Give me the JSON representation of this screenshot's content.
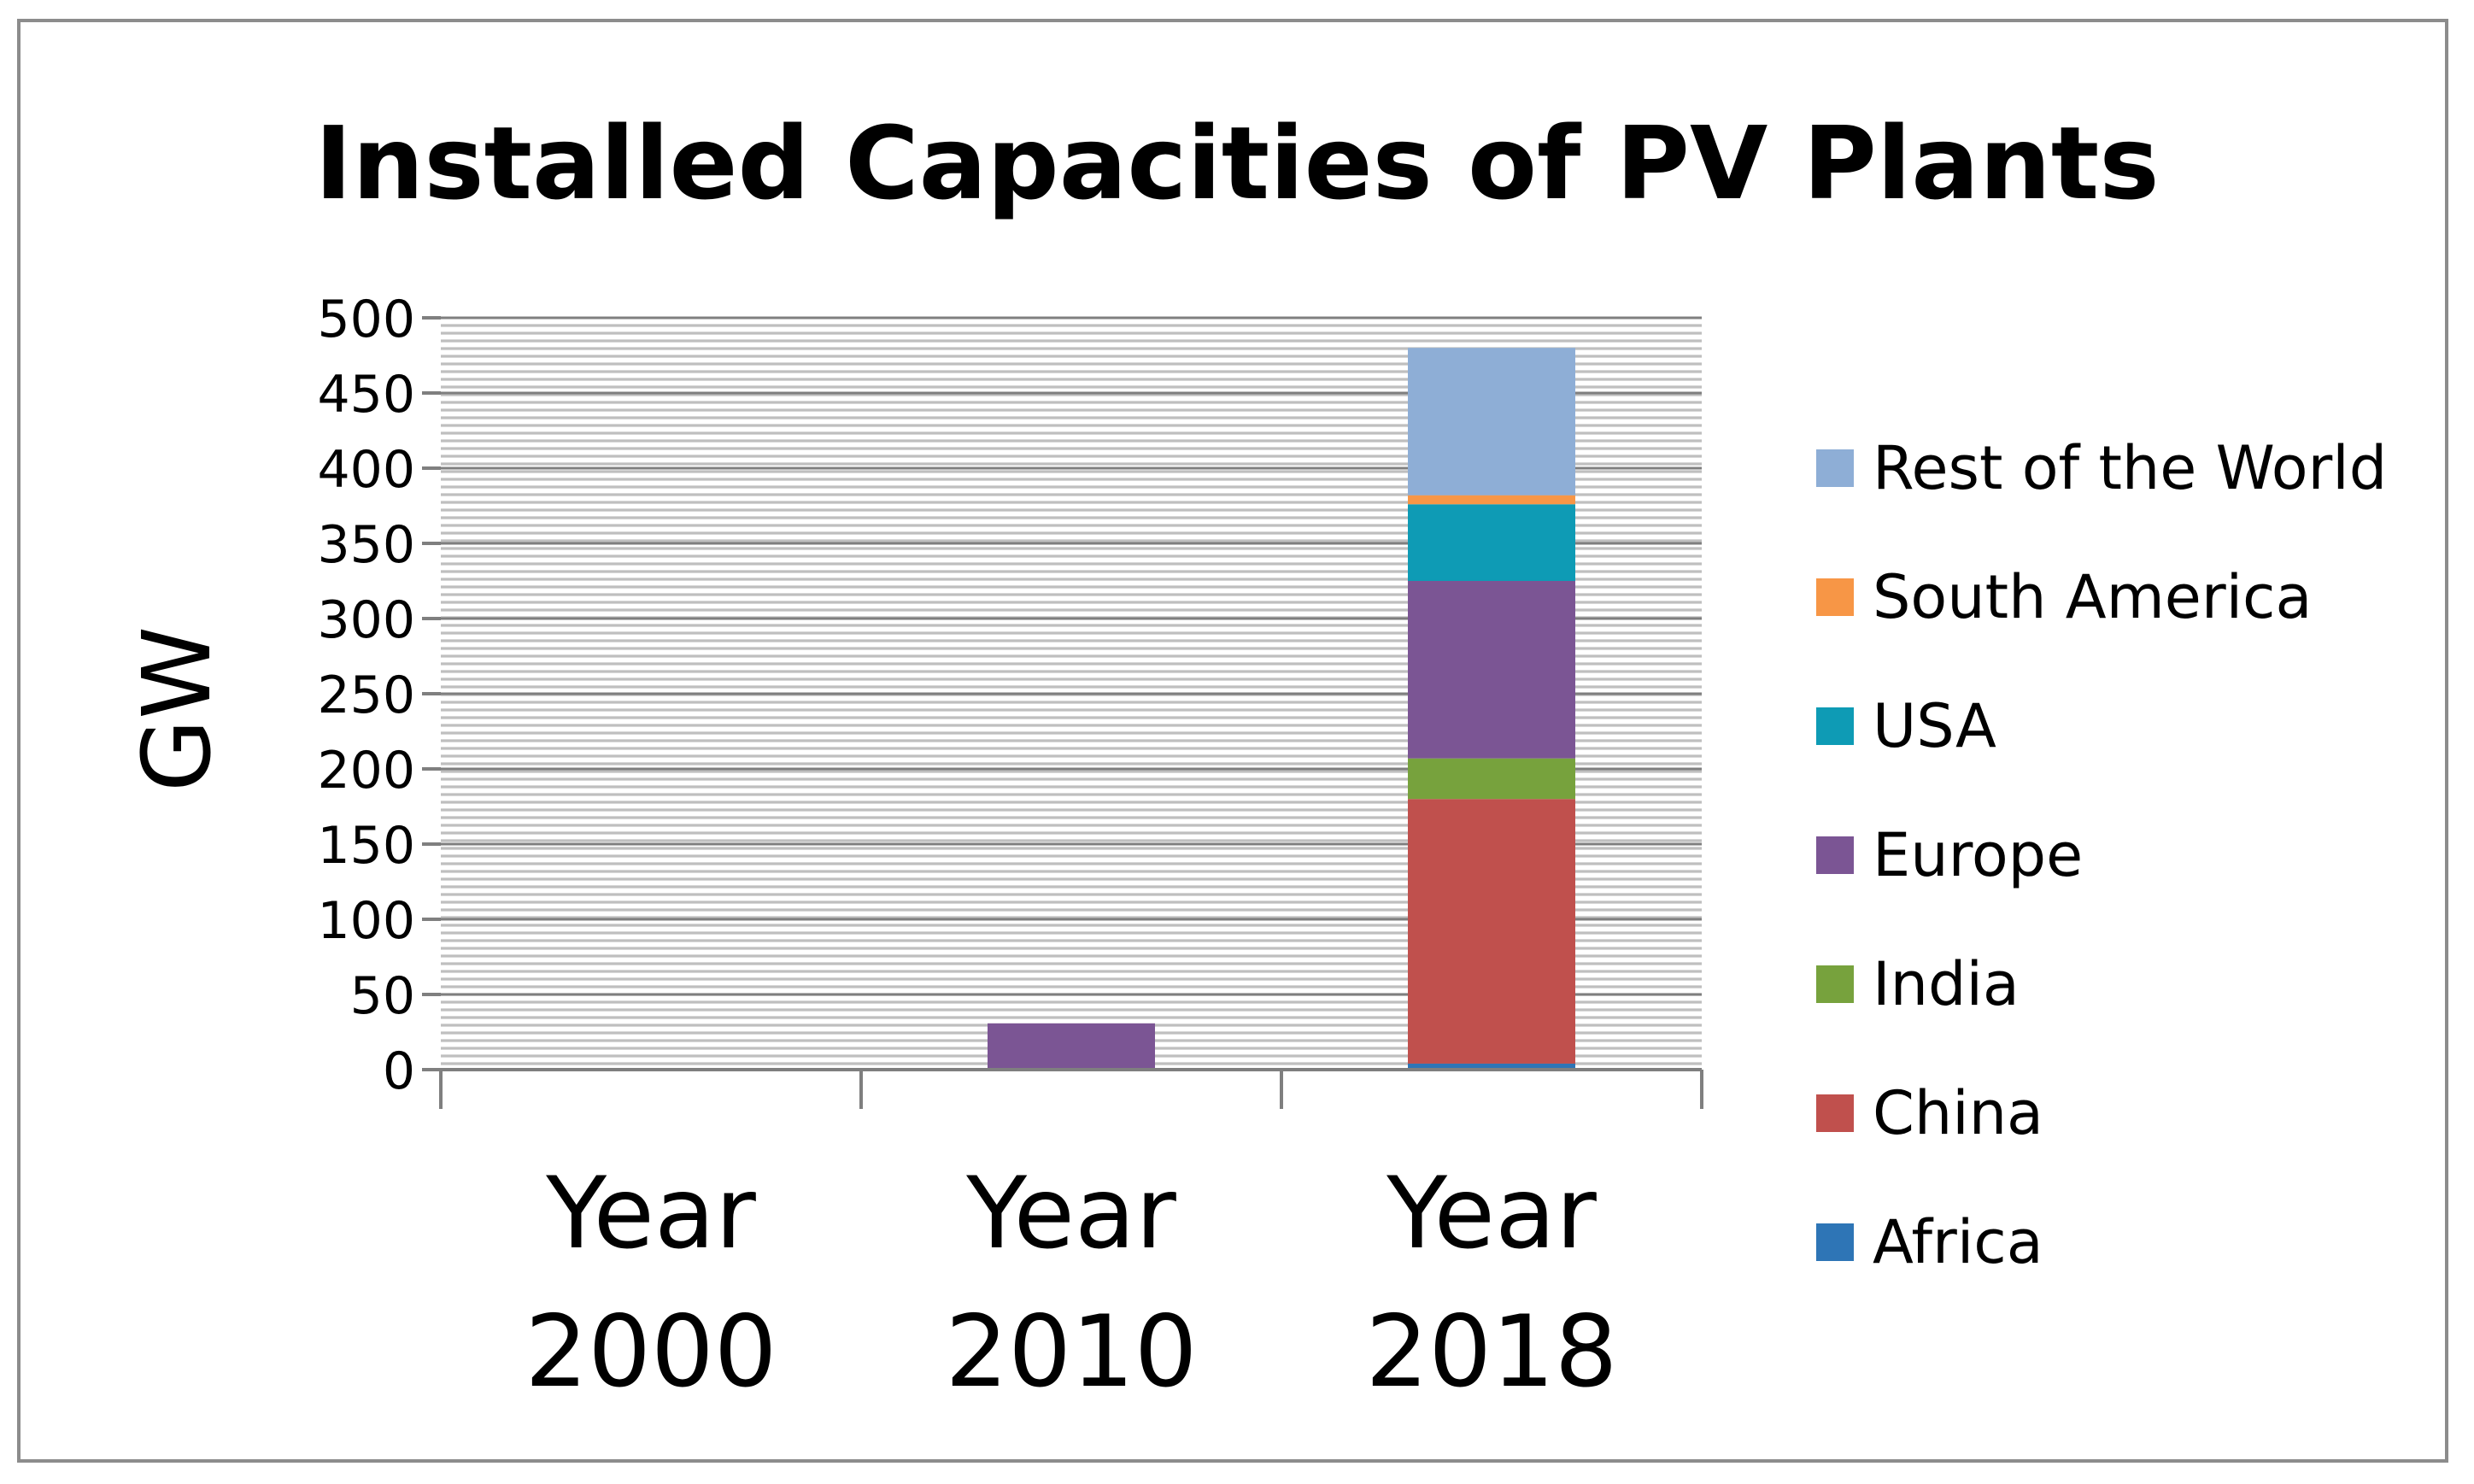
{
  "chart_data": {
    "type": "bar",
    "stacked": true,
    "title": "Installed Capacities of PV Plants",
    "xlabel": "",
    "ylabel": "GW",
    "ylim": [
      0,
      500
    ],
    "yticks": [
      0,
      50,
      100,
      150,
      200,
      250,
      300,
      350,
      400,
      450,
      500
    ],
    "categories": [
      [
        "Year",
        "2000"
      ],
      [
        "Year",
        "2010"
      ],
      [
        "Year",
        "2018"
      ]
    ],
    "series": [
      {
        "name": "Africa",
        "color": "#2E75B6",
        "values": [
          0,
          0,
          4
        ]
      },
      {
        "name": "China",
        "color": "#C0504D",
        "values": [
          0,
          0.8,
          176
        ]
      },
      {
        "name": "India",
        "color": "#77A23D",
        "values": [
          0,
          0,
          27
        ]
      },
      {
        "name": "Europe",
        "color": "#7B5594",
        "values": [
          0.1,
          30,
          118
        ]
      },
      {
        "name": "USA",
        "color": "#0E9BB5",
        "values": [
          0,
          0,
          51
        ]
      },
      {
        "name": "South America",
        "color": "#F79646",
        "values": [
          0,
          0,
          6
        ]
      },
      {
        "name": "Rest of the World",
        "color": "#8EAED6",
        "values": [
          0,
          0,
          98
        ]
      }
    ],
    "legend_position": "right",
    "grid": true
  }
}
